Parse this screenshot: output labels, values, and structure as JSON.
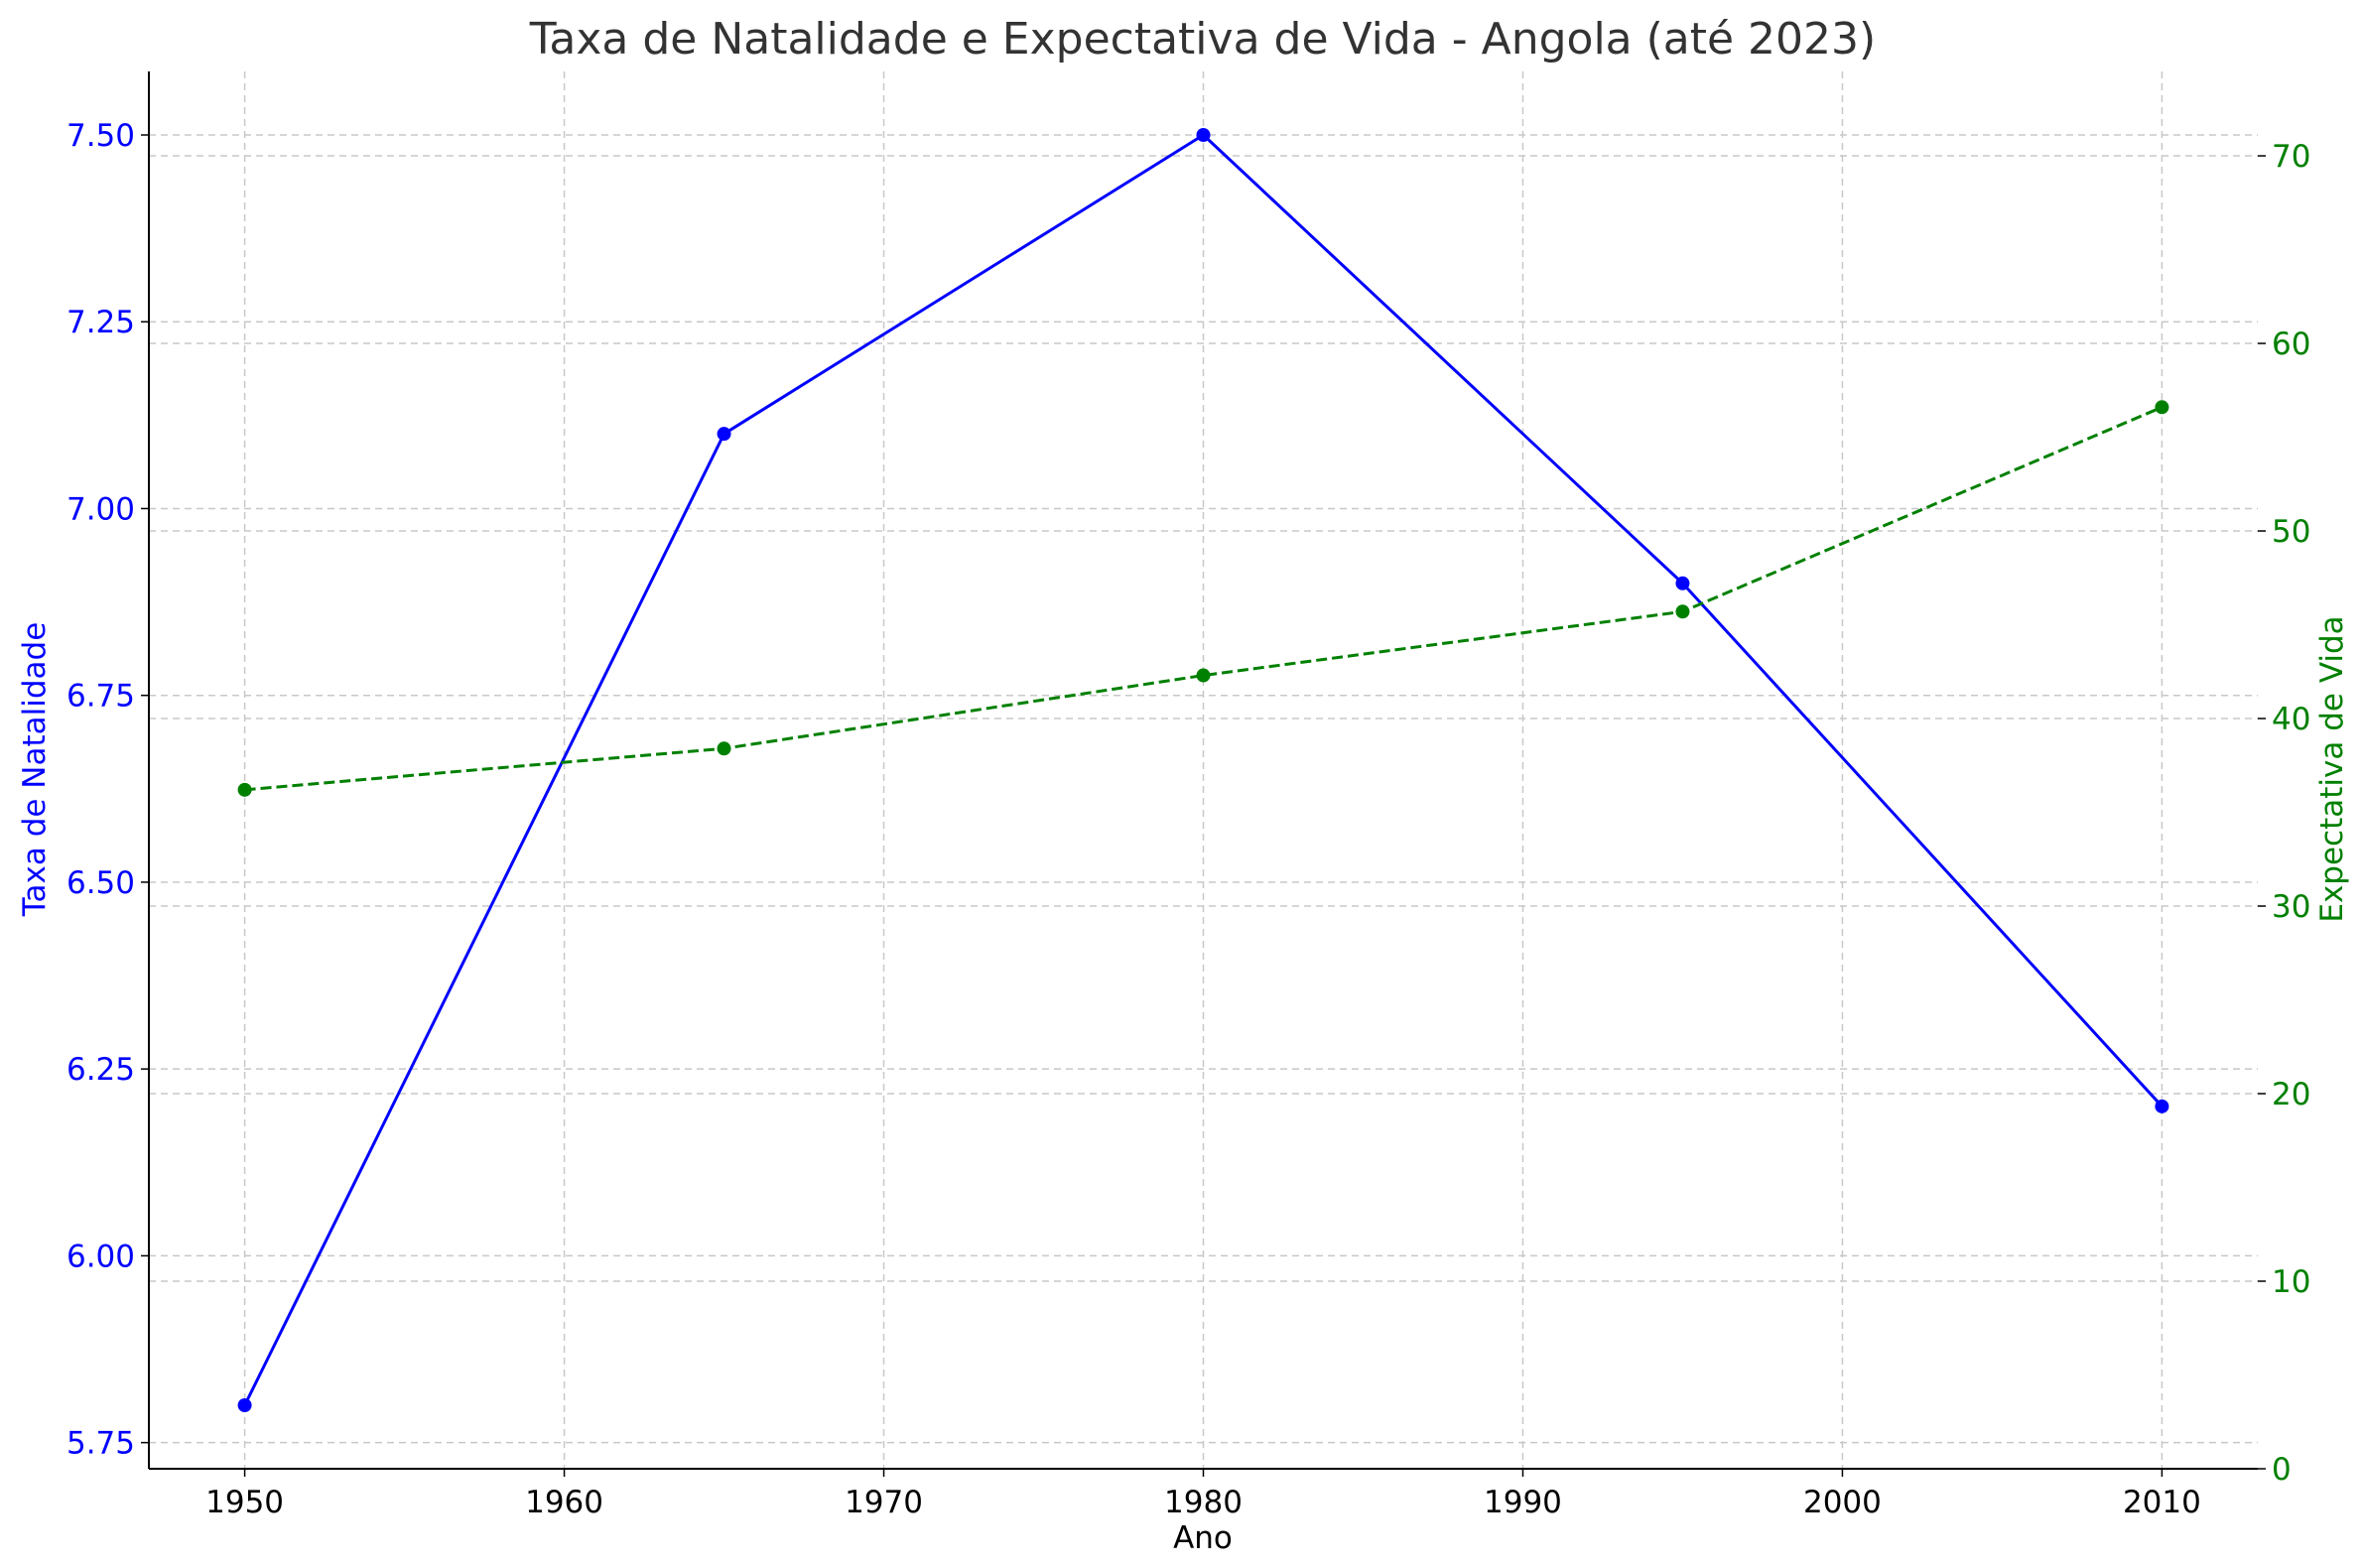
{
  "chart_data": {
    "type": "line",
    "title": "Taxa de Natalidade e Expectativa de Vida - Angola (até 2023)",
    "xlabel": "Ano",
    "ylabel_left": "Taxa de Natalidade",
    "ylabel_right": "Expectativa de Vida",
    "x": [
      1950,
      1965,
      1980,
      1995,
      2010
    ],
    "xlim": [
      1947,
      2013
    ],
    "x_ticks": [
      1950,
      1960,
      1970,
      1980,
      1990,
      2000,
      2010
    ],
    "ylim_left": [
      5.715,
      7.585
    ],
    "y_ticks_left": [
      "5.75",
      "6.00",
      "6.25",
      "6.50",
      "6.75",
      "7.00",
      "7.25",
      "7.50"
    ],
    "ylim_right": [
      0,
      74.5
    ],
    "y_ticks_right": [
      0,
      10,
      20,
      30,
      40,
      50,
      60,
      70
    ],
    "grid": true,
    "series": [
      {
        "name": "Taxa de Natalidade",
        "axis": "left",
        "color": "#0000ff",
        "line_style": "solid",
        "marker": "circle",
        "values": [
          5.8,
          7.1,
          7.5,
          6.9,
          6.2
        ]
      },
      {
        "name": "Expectativa de Vida",
        "axis": "right",
        "color": "#008000",
        "line_style": "dashed",
        "marker": "circle",
        "values": [
          36.2,
          38.4,
          42.3,
          45.7,
          56.6
        ]
      }
    ]
  }
}
